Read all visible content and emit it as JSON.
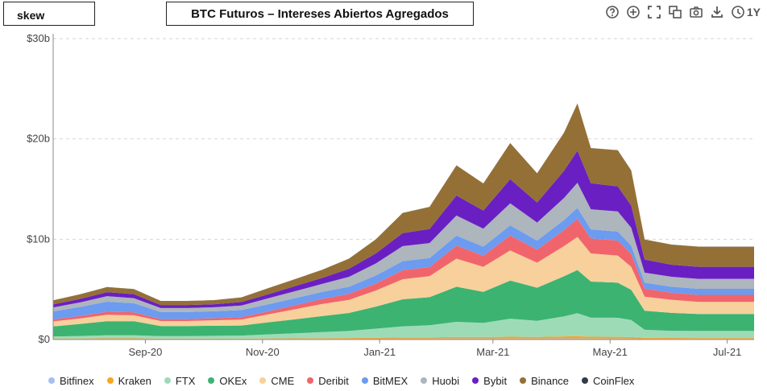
{
  "header": {
    "logo_text": "skew",
    "title": "BTC Futuros – Intereses Abiertos Agregados"
  },
  "toolbar": {
    "icons": [
      "help-icon",
      "crosshair-icon",
      "fullscreen-icon",
      "copy-icon",
      "camera-icon",
      "download-icon",
      "clock-icon"
    ],
    "range_label": "1Y"
  },
  "chart_data": {
    "type": "area",
    "stacked": true,
    "title": "BTC Futuros – Intereses Abiertos Agregados",
    "xlabel": "",
    "ylabel": "",
    "y_tick_labels": [
      "$0",
      "$10b",
      "$20b",
      "$30b"
    ],
    "y_ticks": [
      0,
      10,
      20,
      30
    ],
    "ylim": [
      0,
      30
    ],
    "y_unit": "b USD",
    "x_tick_labels": [
      "Sep-20",
      "Nov-20",
      "Jan-21",
      "Mar-21",
      "May-21",
      "Jul-21"
    ],
    "x_ticks": [
      "2020-09-01",
      "2020-11-01",
      "2021-01-01",
      "2021-03-01",
      "2021-05-01",
      "2021-07-01"
    ],
    "x_range": [
      "2020-07-15",
      "2021-07-15"
    ],
    "grid": true,
    "legend_position": "bottom",
    "x": [
      "2020-07-15",
      "2020-07-29",
      "2020-08-12",
      "2020-08-26",
      "2020-09-09",
      "2020-09-23",
      "2020-10-07",
      "2020-10-21",
      "2020-11-04",
      "2020-11-18",
      "2020-12-02",
      "2020-12-16",
      "2020-12-30",
      "2021-01-13",
      "2021-01-27",
      "2021-02-10",
      "2021-02-24",
      "2021-03-10",
      "2021-03-24",
      "2021-04-07",
      "2021-04-14",
      "2021-04-21",
      "2021-05-05",
      "2021-05-12",
      "2021-05-19",
      "2021-06-02",
      "2021-06-16",
      "2021-06-30",
      "2021-07-15"
    ],
    "series": [
      {
        "name": "Bitfinex",
        "color": "#a6bff2",
        "values": [
          0.05,
          0.05,
          0.06,
          0.06,
          0.05,
          0.05,
          0.05,
          0.05,
          0.06,
          0.06,
          0.07,
          0.07,
          0.08,
          0.09,
          0.09,
          0.1,
          0.1,
          0.1,
          0.1,
          0.11,
          0.11,
          0.1,
          0.1,
          0.09,
          0.07,
          0.07,
          0.07,
          0.07,
          0.07
        ]
      },
      {
        "name": "Kraken",
        "color": "#f5a623",
        "values": [
          0.05,
          0.05,
          0.06,
          0.06,
          0.04,
          0.04,
          0.04,
          0.04,
          0.05,
          0.06,
          0.07,
          0.08,
          0.1,
          0.12,
          0.13,
          0.16,
          0.15,
          0.18,
          0.16,
          0.2,
          0.22,
          0.18,
          0.17,
          0.16,
          0.1,
          0.09,
          0.08,
          0.08,
          0.08
        ]
      },
      {
        "name": "FTX",
        "color": "#9ddbb7",
        "values": [
          0.2,
          0.25,
          0.3,
          0.3,
          0.25,
          0.25,
          0.28,
          0.3,
          0.4,
          0.5,
          0.6,
          0.7,
          0.9,
          1.1,
          1.2,
          1.5,
          1.4,
          1.8,
          1.6,
          2.0,
          2.3,
          1.9,
          1.9,
          1.7,
          0.8,
          0.7,
          0.7,
          0.7,
          0.7
        ]
      },
      {
        "name": "OKEx",
        "color": "#3cb371",
        "values": [
          1.0,
          1.2,
          1.4,
          1.4,
          1.0,
          1.0,
          1.0,
          1.0,
          1.2,
          1.4,
          1.6,
          1.8,
          2.2,
          2.7,
          2.8,
          3.5,
          3.1,
          3.8,
          3.3,
          4.0,
          4.3,
          3.6,
          3.5,
          3.0,
          1.9,
          1.8,
          1.7,
          1.7,
          1.7
        ]
      },
      {
        "name": "CME",
        "color": "#f7d09b",
        "values": [
          0.5,
          0.55,
          0.65,
          0.6,
          0.5,
          0.5,
          0.55,
          0.6,
          0.8,
          1.0,
          1.2,
          1.3,
          1.6,
          2.0,
          2.1,
          2.8,
          2.5,
          3.0,
          2.5,
          3.0,
          3.3,
          2.8,
          2.7,
          2.3,
          1.4,
          1.3,
          1.2,
          1.2,
          1.2
        ]
      },
      {
        "name": "Deribit",
        "color": "#f0656b",
        "values": [
          0.2,
          0.25,
          0.3,
          0.3,
          0.2,
          0.2,
          0.2,
          0.25,
          0.3,
          0.4,
          0.5,
          0.6,
          0.7,
          0.9,
          0.9,
          1.3,
          1.1,
          1.5,
          1.3,
          1.6,
          1.8,
          1.5,
          1.5,
          1.3,
          0.8,
          0.7,
          0.7,
          0.7,
          0.7
        ]
      },
      {
        "name": "BitMEX",
        "color": "#6c9bf0",
        "values": [
          0.8,
          0.9,
          1.0,
          0.9,
          0.7,
          0.7,
          0.7,
          0.7,
          0.7,
          0.7,
          0.7,
          0.7,
          0.8,
          0.9,
          0.9,
          1.0,
          0.9,
          1.0,
          0.9,
          1.0,
          1.1,
          0.9,
          0.9,
          0.8,
          0.6,
          0.6,
          0.6,
          0.6,
          0.6
        ]
      },
      {
        "name": "Huobi",
        "color": "#adb5bd",
        "values": [
          0.4,
          0.45,
          0.55,
          0.5,
          0.4,
          0.4,
          0.4,
          0.45,
          0.6,
          0.7,
          0.8,
          1.0,
          1.2,
          1.5,
          1.5,
          2.0,
          1.8,
          2.2,
          1.8,
          2.2,
          2.5,
          2.0,
          2.0,
          1.8,
          1.0,
          1.0,
          1.0,
          1.0,
          1.0
        ]
      },
      {
        "name": "Bybit",
        "color": "#6a1fc2",
        "values": [
          0.3,
          0.35,
          0.4,
          0.4,
          0.3,
          0.3,
          0.3,
          0.35,
          0.4,
          0.5,
          0.6,
          0.8,
          1.0,
          1.3,
          1.4,
          2.0,
          1.8,
          2.4,
          2.0,
          2.7,
          3.2,
          2.6,
          2.5,
          2.2,
          1.3,
          1.2,
          1.2,
          1.2,
          1.2
        ]
      },
      {
        "name": "Binance",
        "color": "#957036",
        "values": [
          0.4,
          0.45,
          0.5,
          0.5,
          0.4,
          0.4,
          0.4,
          0.45,
          0.6,
          0.7,
          0.8,
          1.0,
          1.4,
          2.0,
          2.2,
          3.0,
          2.7,
          3.6,
          2.9,
          3.8,
          4.7,
          3.5,
          3.6,
          3.5,
          2.0,
          2.0,
          2.0,
          2.0,
          2.0
        ]
      },
      {
        "name": "CoinFlex",
        "color": "#2f3c48",
        "values": [
          0.01,
          0.01,
          0.01,
          0.01,
          0.01,
          0.01,
          0.01,
          0.01,
          0.01,
          0.01,
          0.01,
          0.01,
          0.01,
          0.01,
          0.01,
          0.01,
          0.01,
          0.01,
          0.01,
          0.01,
          0.01,
          0.01,
          0.01,
          0.01,
          0.01,
          0.01,
          0.01,
          0.01,
          0.01
        ]
      }
    ]
  }
}
